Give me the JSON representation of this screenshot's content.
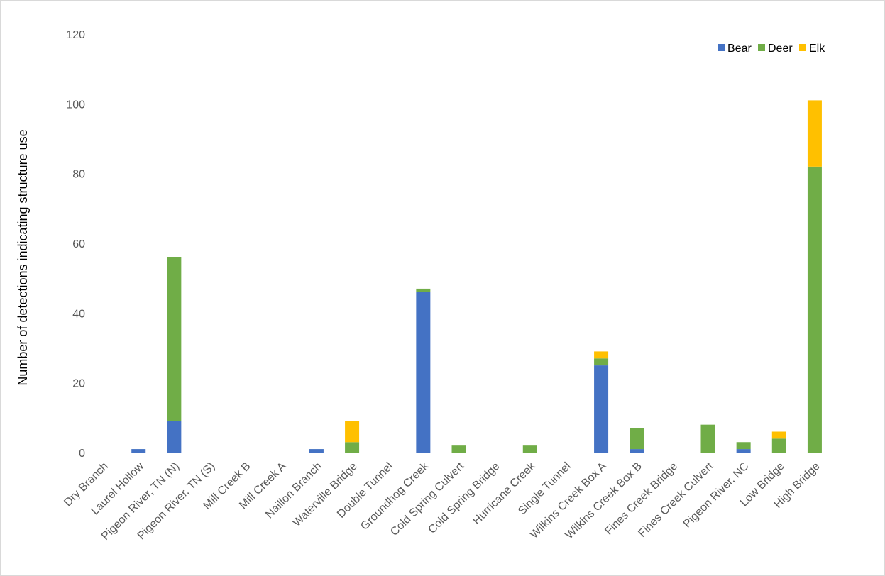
{
  "chart_data": {
    "type": "bar",
    "stacked": true,
    "title": "",
    "xlabel": "",
    "ylabel": "Number of detections indicating structure use",
    "ylim": [
      0,
      120
    ],
    "yticks": [
      0,
      20,
      40,
      60,
      80,
      100,
      120
    ],
    "grid": false,
    "legend_position": "top-right",
    "categories": [
      "Dry Branch",
      "Laurel Hollow",
      "Pigeon River, TN (N)",
      "Pigeon River, TN (S)",
      "Mill Creek B",
      "Mill Creek A",
      "Naillon Branch",
      "Waterville Bridge",
      "Double Tunnel",
      "Groundhog Creek",
      "Cold Spring Culvert",
      "Cold Spring Bridge",
      "Hurricane Creek",
      "Single Tunnel",
      "Wilkins Creek Box A",
      "Wilkins Creek Box B",
      "Fines Creek Bridge",
      "Fines Creek Culvert",
      "Pigeon River, NC",
      "Low Bridge",
      "High Bridge"
    ],
    "series": [
      {
        "name": "Bear",
        "color": "#4472c4",
        "values": [
          0,
          1,
          9,
          0,
          0,
          0,
          1,
          0,
          0,
          46,
          0,
          0,
          0,
          0,
          25,
          1,
          0,
          0,
          1,
          0,
          0
        ]
      },
      {
        "name": "Deer",
        "color": "#70ad47",
        "values": [
          0,
          0,
          47,
          0,
          0,
          0,
          0,
          3,
          0,
          1,
          2,
          0,
          2,
          0,
          2,
          6,
          0,
          8,
          2,
          4,
          82
        ]
      },
      {
        "name": "Elk",
        "color": "#ffc000",
        "values": [
          0,
          0,
          0,
          0,
          0,
          0,
          0,
          6,
          0,
          0,
          0,
          0,
          0,
          0,
          2,
          0,
          0,
          0,
          0,
          2,
          19
        ]
      }
    ]
  }
}
